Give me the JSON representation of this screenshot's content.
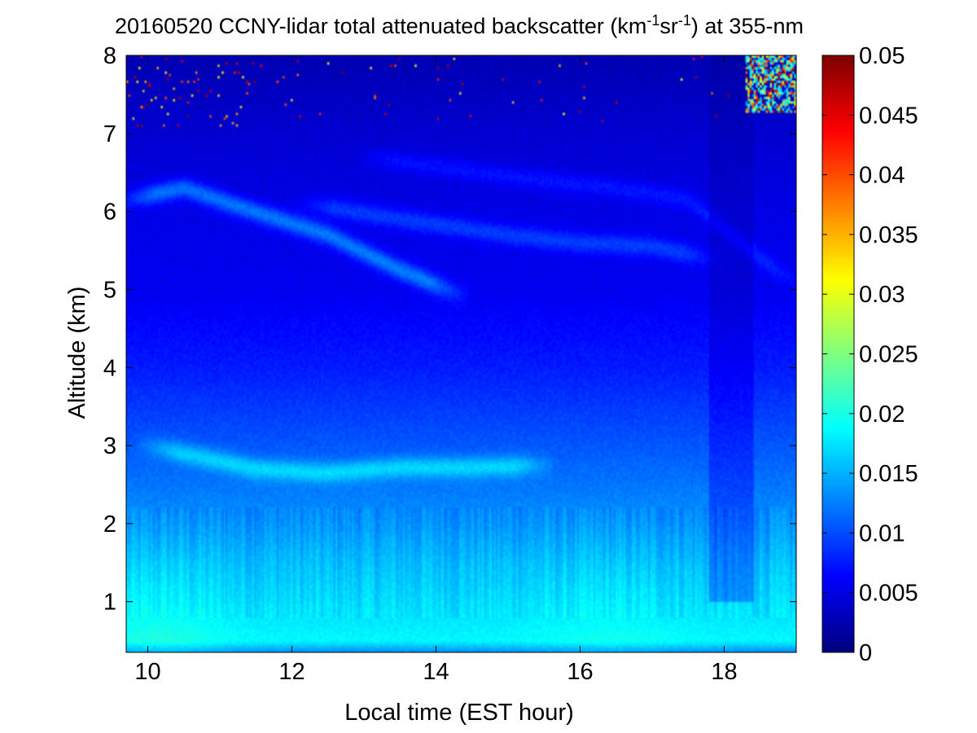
{
  "chart_data": {
    "type": "heatmap",
    "title": {
      "prefix": "20160520 CCNY-lidar total attenuated backscatter (km",
      "sup1": "-1",
      "mid": "sr",
      "sup2": "-1",
      "suffix": ") at 355-nm"
    },
    "xlabel": "Local time (EST hour)",
    "ylabel": "Altitude (km)",
    "xlim": [
      9.7,
      19.0
    ],
    "ylim": [
      0.35,
      8.0
    ],
    "x_ticks": [
      10,
      12,
      14,
      16,
      18
    ],
    "y_ticks": [
      1,
      2,
      3,
      4,
      5,
      6,
      7,
      8
    ],
    "colorbar": {
      "colormap": "jet",
      "range": [
        0,
        0.05
      ],
      "ticks": [
        0,
        0.005,
        0.01,
        0.015,
        0.02,
        0.025,
        0.03,
        0.035,
        0.04,
        0.045,
        0.05
      ],
      "tick_labels": [
        "0",
        "0.005",
        "0.01",
        "0.015",
        "0.02",
        "0.025",
        "0.03",
        "0.035",
        "0.04",
        "0.045",
        "0.05"
      ]
    },
    "vertical_profile": {
      "altitude_km": [
        0.35,
        0.5,
        0.8,
        1.0,
        1.5,
        2.0,
        2.5,
        3.0,
        4.0,
        5.0,
        6.0,
        7.0,
        8.0
      ],
      "backscatter": [
        0.013,
        0.0185,
        0.0175,
        0.017,
        0.0155,
        0.0135,
        0.012,
        0.0105,
        0.0075,
        0.0055,
        0.005,
        0.004,
        0.0025
      ]
    },
    "aerosol_layers": [
      {
        "time": [
          9.7,
          10.5,
          11.3,
          12.5,
          13.5,
          14.3
        ],
        "altitude_km": [
          6.15,
          6.3,
          6.05,
          5.7,
          5.25,
          4.95
        ],
        "peak_backscatter": 0.012
      },
      {
        "time": [
          12.2,
          13.5,
          15.0,
          16.0,
          17.0,
          17.8
        ],
        "altitude_km": [
          6.1,
          5.9,
          5.7,
          5.6,
          5.55,
          5.4
        ],
        "peak_backscatter": 0.009
      },
      {
        "time": [
          13.0,
          15.0,
          16.5,
          17.5,
          18.5,
          19.0
        ],
        "altitude_km": [
          6.7,
          6.45,
          6.3,
          6.15,
          5.4,
          5.1
        ],
        "peak_backscatter": 0.0075
      },
      {
        "time": [
          10.0,
          11.5,
          12.5,
          13.5,
          14.5,
          15.5
        ],
        "altitude_km": [
          3.0,
          2.7,
          2.65,
          2.72,
          2.72,
          2.75
        ],
        "peak_backscatter": 0.0105
      }
    ],
    "high_cloud": {
      "time": [
        18.3,
        19.0
      ],
      "altitude_km": [
        7.25,
        8.0
      ],
      "peak_backscatter": 0.05
    },
    "low_signal_period": {
      "time": [
        17.8,
        18.4
      ],
      "altitude_km": [
        1.0,
        8.0
      ]
    },
    "grid": false,
    "colorbar_position": "right"
  }
}
